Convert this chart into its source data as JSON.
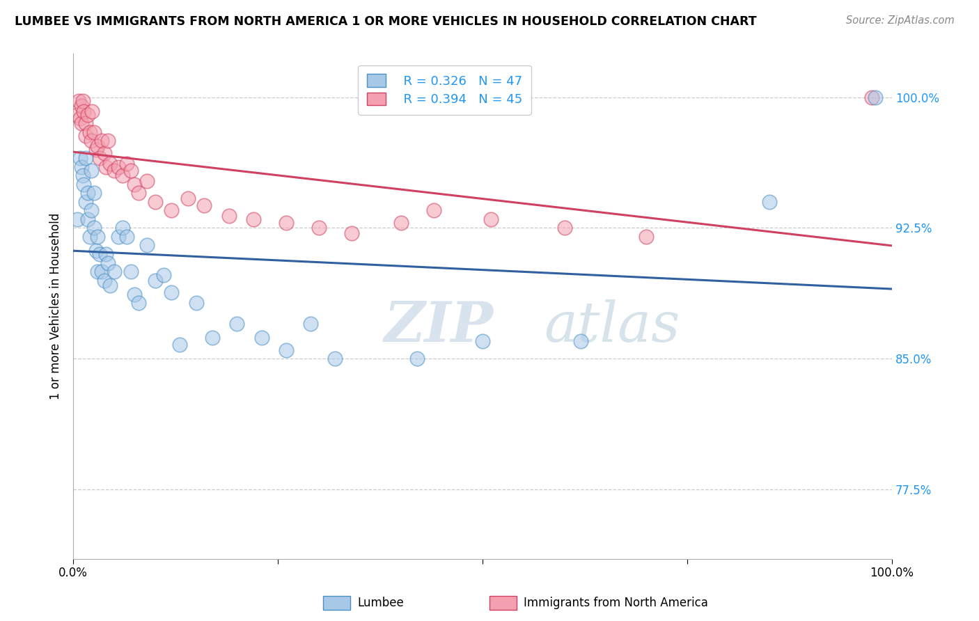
{
  "title": "LUMBEE VS IMMIGRANTS FROM NORTH AMERICA 1 OR MORE VEHICLES IN HOUSEHOLD CORRELATION CHART",
  "source": "Source: ZipAtlas.com",
  "ylabel": "1 or more Vehicles in Household",
  "xlim": [
    0,
    1.0
  ],
  "ylim": [
    0.735,
    1.025
  ],
  "yticks": [
    0.775,
    0.85,
    0.925,
    1.0
  ],
  "ytick_labels": [
    "77.5%",
    "85.0%",
    "92.5%",
    "100.0%"
  ],
  "xticks": [
    0.0,
    0.25,
    0.5,
    0.75,
    1.0
  ],
  "xtick_labels": [
    "0.0%",
    "",
    "",
    "",
    "100.0%"
  ],
  "legend_blue_label": "Lumbee",
  "legend_pink_label": "Immigrants from North America",
  "R_blue": 0.326,
  "N_blue": 47,
  "R_pink": 0.394,
  "N_pink": 45,
  "blue_color": "#a8c8e8",
  "blue_edge_color": "#4a90c4",
  "pink_color": "#f4a0b0",
  "pink_edge_color": "#d04060",
  "blue_line_color": "#3060a0",
  "pink_line_color": "#d04060",
  "watermark_zip": "ZIP",
  "watermark_atlas": "atlas",
  "lumbee_x": [
    0.005,
    0.008,
    0.01,
    0.012,
    0.013,
    0.015,
    0.015,
    0.018,
    0.018,
    0.02,
    0.022,
    0.022,
    0.025,
    0.025,
    0.028,
    0.03,
    0.03,
    0.032,
    0.035,
    0.038,
    0.04,
    0.042,
    0.045,
    0.05,
    0.055,
    0.06,
    0.065,
    0.07,
    0.075,
    0.08,
    0.09,
    0.1,
    0.11,
    0.12,
    0.13,
    0.15,
    0.17,
    0.2,
    0.23,
    0.26,
    0.29,
    0.32,
    0.42,
    0.5,
    0.62,
    0.85,
    0.98
  ],
  "lumbee_y": [
    0.93,
    0.965,
    0.96,
    0.955,
    0.95,
    0.965,
    0.94,
    0.93,
    0.945,
    0.92,
    0.958,
    0.935,
    0.945,
    0.925,
    0.912,
    0.92,
    0.9,
    0.91,
    0.9,
    0.895,
    0.91,
    0.905,
    0.892,
    0.9,
    0.92,
    0.925,
    0.92,
    0.9,
    0.887,
    0.882,
    0.915,
    0.895,
    0.898,
    0.888,
    0.858,
    0.882,
    0.862,
    0.87,
    0.862,
    0.855,
    0.87,
    0.85,
    0.85,
    0.86,
    0.86,
    0.94,
    1.0
  ],
  "immig_x": [
    0.005,
    0.007,
    0.008,
    0.01,
    0.01,
    0.012,
    0.013,
    0.015,
    0.015,
    0.018,
    0.02,
    0.022,
    0.023,
    0.025,
    0.028,
    0.03,
    0.032,
    0.035,
    0.038,
    0.04,
    0.042,
    0.045,
    0.05,
    0.055,
    0.06,
    0.065,
    0.07,
    0.075,
    0.08,
    0.09,
    0.1,
    0.12,
    0.14,
    0.16,
    0.19,
    0.22,
    0.26,
    0.3,
    0.34,
    0.4,
    0.44,
    0.51,
    0.6,
    0.7,
    0.975
  ],
  "immig_y": [
    0.99,
    0.998,
    0.988,
    0.995,
    0.985,
    0.998,
    0.992,
    0.985,
    0.978,
    0.99,
    0.98,
    0.975,
    0.992,
    0.98,
    0.97,
    0.972,
    0.965,
    0.975,
    0.968,
    0.96,
    0.975,
    0.962,
    0.958,
    0.96,
    0.955,
    0.962,
    0.958,
    0.95,
    0.945,
    0.952,
    0.94,
    0.935,
    0.942,
    0.938,
    0.932,
    0.93,
    0.928,
    0.925,
    0.922,
    0.928,
    0.935,
    0.93,
    0.925,
    0.92,
    1.0
  ]
}
